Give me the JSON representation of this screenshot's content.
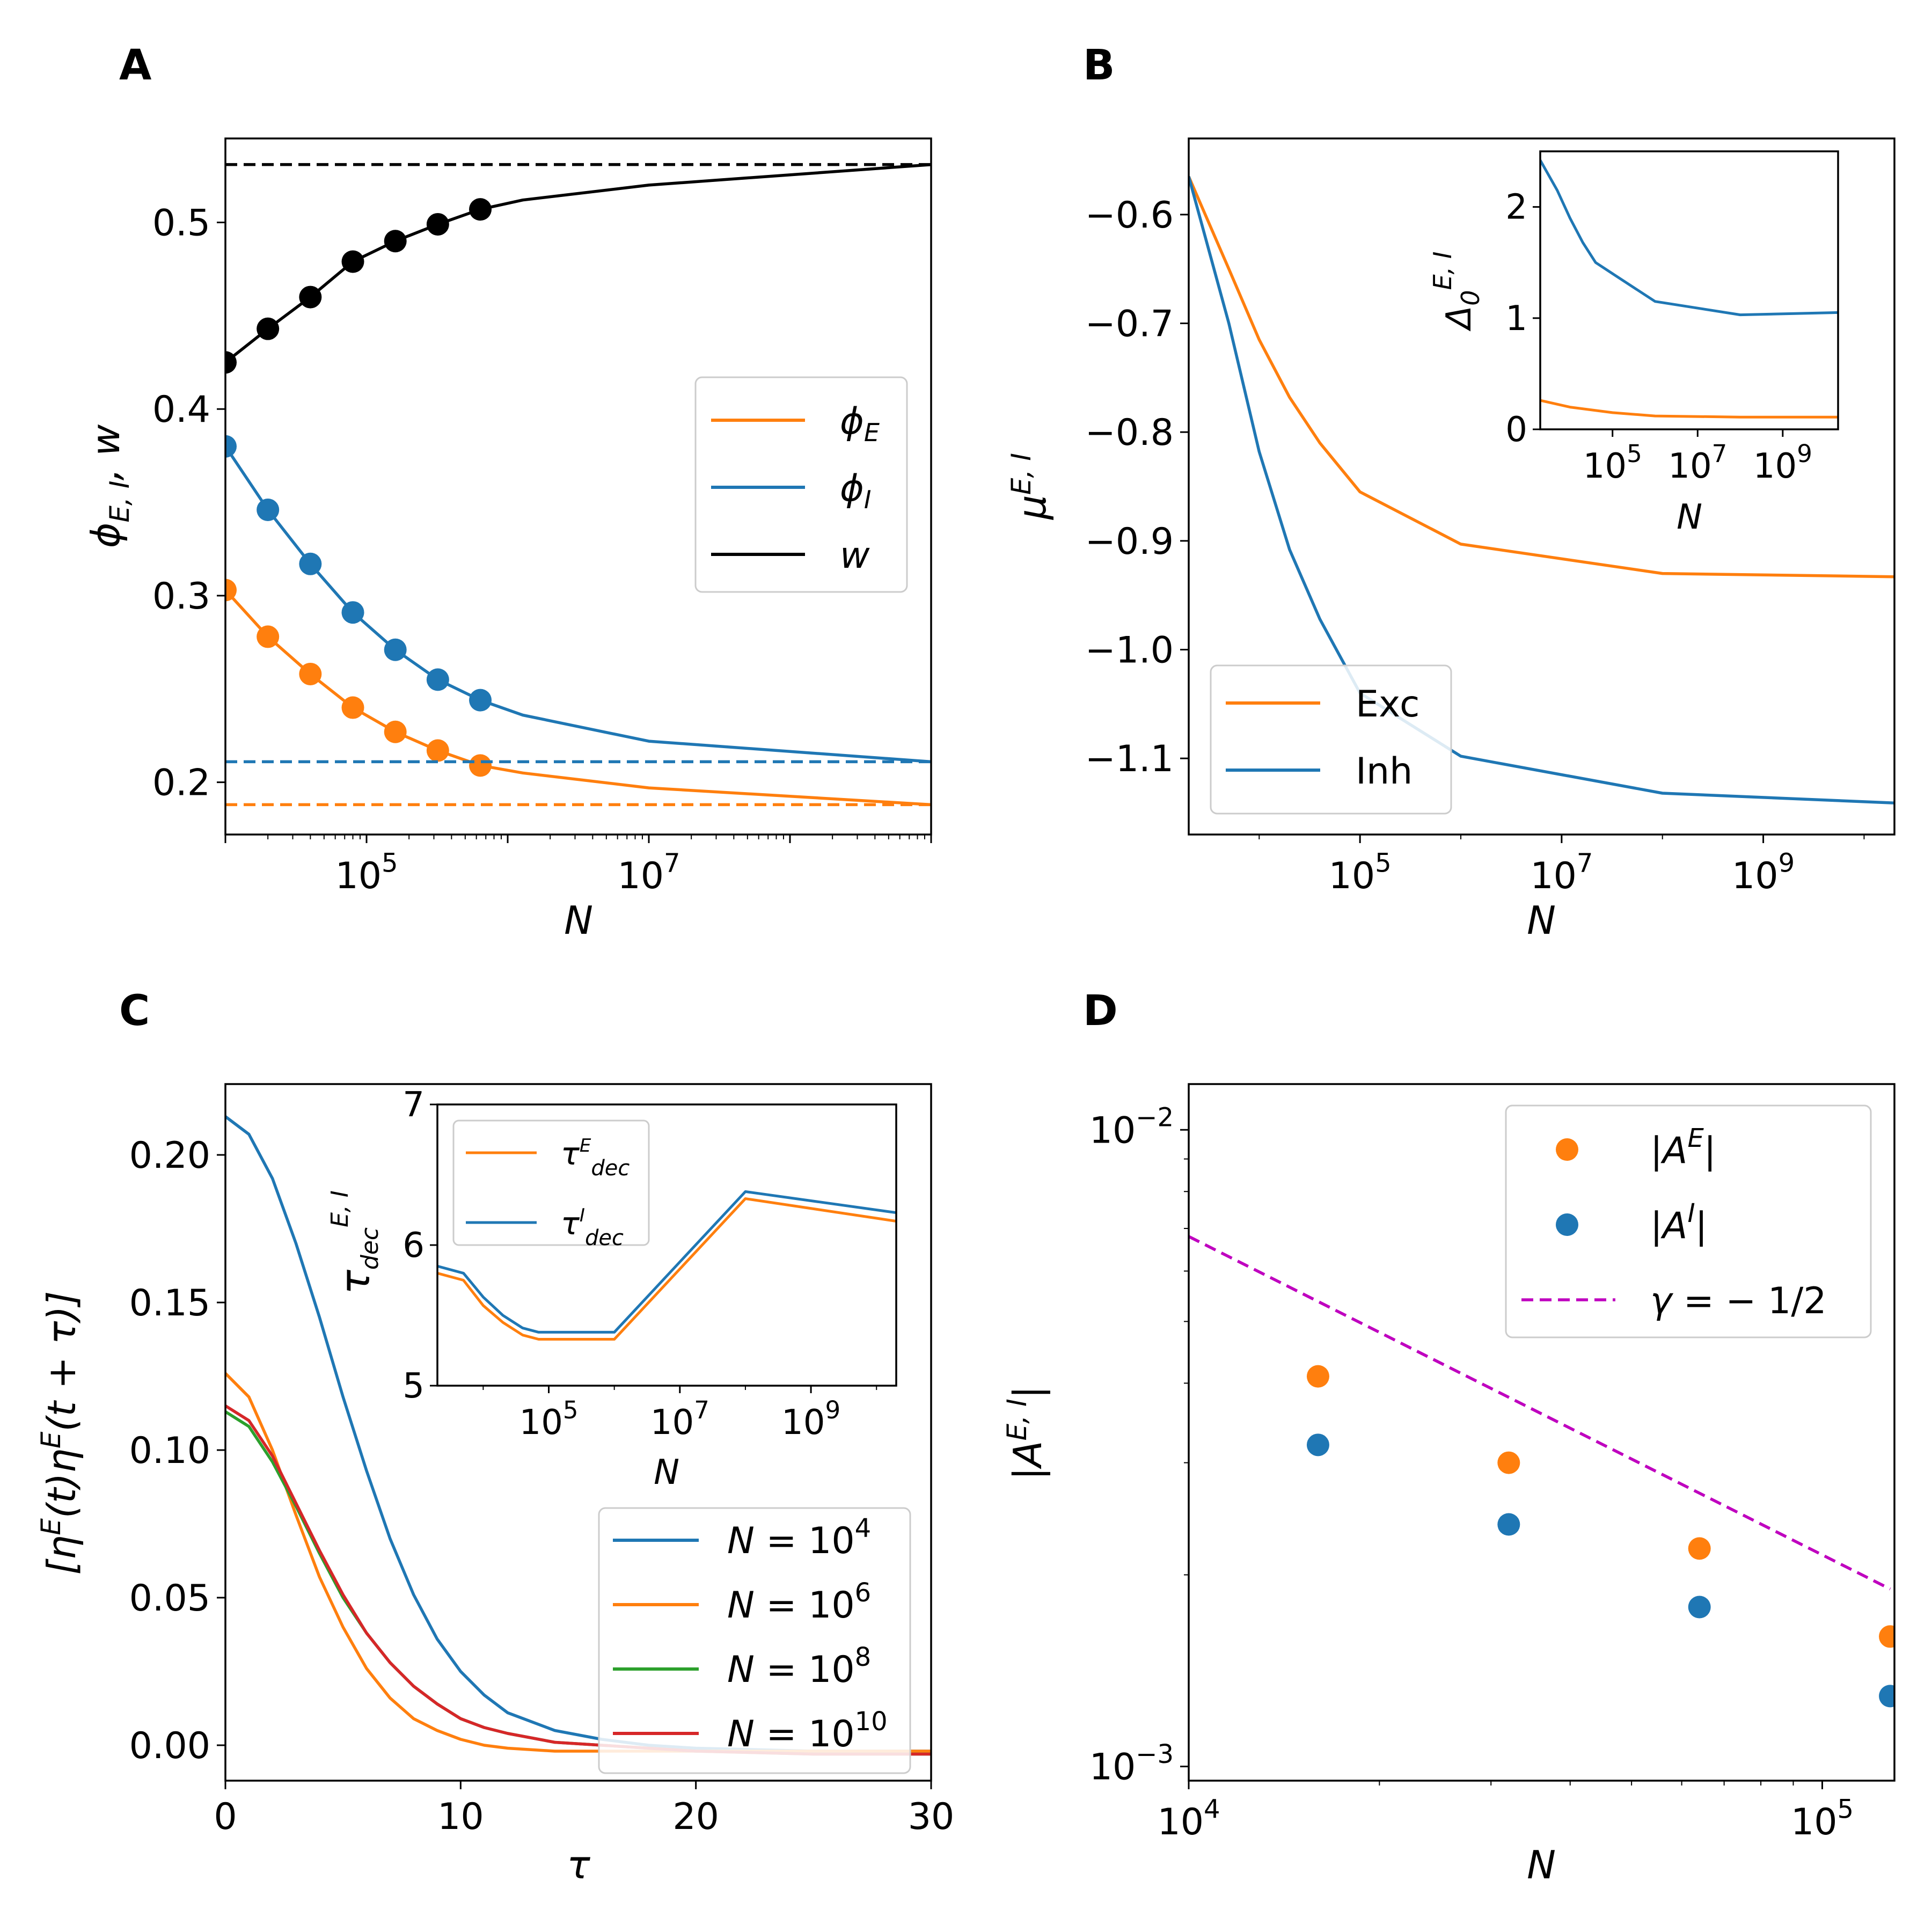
{
  "colors": {
    "exc": "#ff7f0e",
    "inh": "#1f77b4",
    "w": "#000000",
    "green": "#2ca02c",
    "red": "#d62728",
    "magenta": "#bf00bf"
  },
  "chart_data": [
    {
      "id": "A",
      "panel_label": "A",
      "type": "line",
      "xscale": "log",
      "xlim": [
        10000,
        1000000000
      ],
      "ylim": [
        0.172,
        0.545
      ],
      "xlabel": "N",
      "ylabel": "ϕ_{E, I}, w",
      "xticks": [
        {
          "value": 100000,
          "base": "10",
          "exp": "5"
        },
        {
          "value": 10000000,
          "base": "10",
          "exp": "7"
        }
      ],
      "yticks": [
        {
          "value": 0.2,
          "label": "0.2"
        },
        {
          "value": 0.3,
          "label": "0.3"
        },
        {
          "value": 0.4,
          "label": "0.4"
        },
        {
          "value": 0.5,
          "label": "0.5"
        }
      ],
      "legend_position": "center-right",
      "series": [
        {
          "name": "w",
          "legend_base": "w",
          "legend_sub": "",
          "color": "#000000",
          "x": [
            10000,
            20000,
            40000,
            80000,
            160000,
            320000,
            640000,
            1280000,
            10000000,
            1000000000
          ],
          "y": [
            0.425,
            0.443,
            0.46,
            0.479,
            0.49,
            0.499,
            0.507,
            0.512,
            0.52,
            0.531
          ],
          "marker_x": [
            10000,
            20000,
            40000,
            80000,
            160000,
            320000,
            640000
          ],
          "marker_y": [
            0.425,
            0.443,
            0.46,
            0.479,
            0.49,
            0.499,
            0.507
          ],
          "asymptote": 0.531
        },
        {
          "name": "ϕ_E",
          "legend_base": "ϕ",
          "legend_sub": "E",
          "color": "#ff7f0e",
          "x": [
            10000,
            20000,
            40000,
            80000,
            160000,
            320000,
            640000,
            1280000,
            10000000,
            1000000000
          ],
          "y": [
            0.303,
            0.278,
            0.258,
            0.24,
            0.227,
            0.217,
            0.209,
            0.205,
            0.197,
            0.188
          ],
          "marker_x": [
            10000,
            20000,
            40000,
            80000,
            160000,
            320000,
            640000
          ],
          "marker_y": [
            0.303,
            0.278,
            0.258,
            0.24,
            0.227,
            0.217,
            0.209
          ],
          "asymptote": 0.188
        },
        {
          "name": "ϕ_I",
          "legend_base": "ϕ",
          "legend_sub": "I",
          "color": "#1f77b4",
          "x": [
            10000,
            20000,
            40000,
            80000,
            160000,
            320000,
            640000,
            1280000,
            10000000,
            1000000000
          ],
          "y": [
            0.38,
            0.346,
            0.317,
            0.291,
            0.271,
            0.255,
            0.244,
            0.236,
            0.222,
            0.211
          ],
          "marker_x": [
            10000,
            20000,
            40000,
            80000,
            160000,
            320000,
            640000
          ],
          "marker_y": [
            0.38,
            0.346,
            0.317,
            0.291,
            0.271,
            0.255,
            0.244
          ],
          "asymptote": 0.211
        }
      ]
    },
    {
      "id": "B",
      "panel_label": "B",
      "type": "line",
      "xscale": "log",
      "xlim": [
        2000,
        20000000000
      ],
      "ylim": [
        -1.17,
        -0.53
      ],
      "xlabel": "N",
      "ylabel": "μ^{E, I}",
      "xticks": [
        {
          "value": 100000,
          "base": "10",
          "exp": "5"
        },
        {
          "value": 10000000,
          "base": "10",
          "exp": "7"
        },
        {
          "value": 1000000000,
          "base": "10",
          "exp": "9"
        }
      ],
      "yticks": [
        {
          "value": -0.6,
          "label": "−0.6"
        },
        {
          "value": -0.7,
          "label": "−0.7"
        },
        {
          "value": -0.8,
          "label": "−0.8"
        },
        {
          "value": -0.9,
          "label": "−0.9"
        },
        {
          "value": -1.0,
          "label": "−1.0"
        },
        {
          "value": -1.1,
          "label": "−1.1"
        }
      ],
      "legend_position": "lower-left",
      "series": [
        {
          "name": "Exc",
          "color": "#ff7f0e",
          "x": [
            2000,
            5000,
            10000,
            20000,
            40000,
            100000,
            1000000,
            100000000,
            20000000000
          ],
          "y": [
            -0.565,
            -0.65,
            -0.715,
            -0.768,
            -0.81,
            -0.855,
            -0.903,
            -0.93,
            -0.933
          ]
        },
        {
          "name": "Inh",
          "color": "#1f77b4",
          "x": [
            2000,
            5000,
            10000,
            20000,
            40000,
            100000,
            1000000,
            100000000,
            20000000000
          ],
          "y": [
            -0.565,
            -0.7,
            -0.818,
            -0.908,
            -0.972,
            -1.04,
            -1.098,
            -1.132,
            -1.141
          ]
        }
      ],
      "inset": {
        "type": "line",
        "xscale": "log",
        "xlim": [
          2000,
          20000000000
        ],
        "ylim": [
          0,
          2.5
        ],
        "xlabel": "N",
        "ylabel": "Δ_0^{E, I}",
        "xticks": [
          {
            "value": 100000,
            "base": "10",
            "exp": "5"
          },
          {
            "value": 10000000,
            "base": "10",
            "exp": "7"
          },
          {
            "value": 1000000000,
            "base": "10",
            "exp": "9"
          }
        ],
        "yticks": [
          {
            "value": 0,
            "label": "0"
          },
          {
            "value": 1,
            "label": "1"
          },
          {
            "value": 2,
            "label": "2"
          }
        ],
        "series": [
          {
            "name": "Exc",
            "color": "#ff7f0e",
            "x": [
              2000,
              10000,
              100000,
              1000000,
              100000000,
              20000000000
            ],
            "y": [
              0.26,
              0.2,
              0.15,
              0.12,
              0.11,
              0.11
            ]
          },
          {
            "name": "Inh",
            "color": "#1f77b4",
            "x": [
              2000,
              5000,
              10000,
              20000,
              40000,
              100000,
              1000000,
              100000000,
              20000000000
            ],
            "y": [
              2.42,
              2.15,
              1.9,
              1.68,
              1.5,
              1.4,
              1.15,
              1.03,
              1.05
            ]
          }
        ]
      }
    },
    {
      "id": "C",
      "panel_label": "C",
      "type": "line",
      "xscale": "linear",
      "xlim": [
        0,
        30
      ],
      "ylim": [
        -0.012,
        0.224
      ],
      "xlabel": "τ",
      "ylabel": "[η^E(t)η^E(t + τ)]",
      "xticks": [
        {
          "value": 0,
          "label": "0"
        },
        {
          "value": 10,
          "label": "10"
        },
        {
          "value": 20,
          "label": "20"
        },
        {
          "value": 30,
          "label": "30"
        }
      ],
      "yticks": [
        {
          "value": 0.0,
          "label": "0.00"
        },
        {
          "value": 0.05,
          "label": "0.05"
        },
        {
          "value": 0.1,
          "label": "0.10"
        },
        {
          "value": 0.15,
          "label": "0.15"
        },
        {
          "value": 0.2,
          "label": "0.20"
        }
      ],
      "legend_position": "lower-right",
      "series": [
        {
          "name": "N = 10^4",
          "exp": "4",
          "color": "#1f77b4",
          "x": [
            0,
            1,
            2,
            3,
            4,
            5,
            6,
            7,
            8,
            9,
            10,
            11,
            12,
            14,
            16,
            18,
            20,
            25,
            30
          ],
          "y": [
            0.213,
            0.207,
            0.192,
            0.17,
            0.145,
            0.118,
            0.093,
            0.07,
            0.051,
            0.036,
            0.025,
            0.017,
            0.011,
            0.005,
            0.002,
            0.0,
            -0.001,
            -0.002,
            -0.002
          ]
        },
        {
          "name": "N = 10^6",
          "exp": "6",
          "color": "#ff7f0e",
          "x": [
            0,
            1,
            2,
            3,
            4,
            5,
            6,
            7,
            8,
            9,
            10,
            11,
            12,
            14,
            16,
            18,
            20,
            25,
            30
          ],
          "y": [
            0.126,
            0.118,
            0.1,
            0.078,
            0.057,
            0.04,
            0.026,
            0.016,
            0.009,
            0.005,
            0.002,
            0.0,
            -0.001,
            -0.002,
            -0.002,
            -0.002,
            -0.002,
            -0.002,
            -0.002
          ]
        },
        {
          "name": "N = 10^8",
          "exp": "8",
          "color": "#2ca02c",
          "x": [
            0,
            1,
            2,
            3,
            4,
            5,
            6,
            7,
            8,
            9,
            10,
            11,
            12,
            14,
            16,
            18,
            20,
            25,
            30
          ],
          "y": [
            0.113,
            0.108,
            0.096,
            0.081,
            0.065,
            0.05,
            0.038,
            0.028,
            0.02,
            0.014,
            0.009,
            0.006,
            0.004,
            0.001,
            0.0,
            -0.001,
            -0.002,
            -0.003,
            -0.003
          ]
        },
        {
          "name": "N = 10^10",
          "exp": "10",
          "color": "#d62728",
          "x": [
            0,
            1,
            2,
            3,
            4,
            5,
            6,
            7,
            8,
            9,
            10,
            11,
            12,
            14,
            16,
            18,
            20,
            25,
            30
          ],
          "y": [
            0.115,
            0.11,
            0.098,
            0.082,
            0.066,
            0.051,
            0.038,
            0.028,
            0.02,
            0.014,
            0.009,
            0.006,
            0.004,
            0.001,
            0.0,
            -0.001,
            -0.002,
            -0.003,
            -0.003
          ]
        }
      ],
      "inset": {
        "type": "line",
        "xscale": "log",
        "xlim": [
          2000,
          20000000000
        ],
        "ylim": [
          5,
          7
        ],
        "xlabel": "N",
        "ylabel": "τ_{dec}^{E, I}",
        "xticks": [
          {
            "value": 100000,
            "base": "10",
            "exp": "5"
          },
          {
            "value": 10000000,
            "base": "10",
            "exp": "7"
          },
          {
            "value": 1000000000,
            "base": "10",
            "exp": "9"
          }
        ],
        "yticks": [
          {
            "value": 5,
            "label": "5"
          },
          {
            "value": 6,
            "label": "6"
          },
          {
            "value": 7,
            "label": "7"
          }
        ],
        "legend_position": "upper-left",
        "series": [
          {
            "name": "τ_dec^E",
            "sup": "E",
            "color": "#ff7f0e",
            "x": [
              2000,
              5000,
              10000,
              20000,
              40000,
              70000,
              1000000,
              100000000,
              20000000000
            ],
            "y": [
              5.8,
              5.75,
              5.57,
              5.45,
              5.36,
              5.33,
              5.33,
              6.33,
              6.17
            ]
          },
          {
            "name": "τ_dec^I",
            "sup": "I",
            "color": "#1f77b4",
            "x": [
              2000,
              5000,
              10000,
              20000,
              40000,
              70000,
              1000000,
              100000000,
              20000000000
            ],
            "y": [
              5.85,
              5.8,
              5.63,
              5.5,
              5.41,
              5.38,
              5.38,
              6.38,
              6.23
            ]
          }
        ]
      }
    },
    {
      "id": "D",
      "panel_label": "D",
      "type": "scatter",
      "xscale": "log",
      "yscale": "log",
      "xlim": [
        10000,
        130000
      ],
      "ylim": [
        0.00095,
        0.0118
      ],
      "xlabel": "N",
      "ylabel": "|A^{E, I}|",
      "xticks": [
        {
          "value": 10000,
          "base": "10",
          "exp": "4"
        },
        {
          "value": 100000,
          "base": "10",
          "exp": "5"
        }
      ],
      "yticks": [
        {
          "value": 0.001,
          "base": "10",
          "exp": "−3"
        },
        {
          "value": 0.01,
          "base": "10",
          "exp": "−2"
        }
      ],
      "legend_position": "upper-right",
      "series": [
        {
          "name": "|A^E|",
          "sup": "E",
          "color": "#ff7f0e",
          "x": [
            16000,
            32000,
            64000,
            128000
          ],
          "y": [
            0.0041,
            0.003,
            0.0022,
            0.0016
          ]
        },
        {
          "name": "|A^I|",
          "sup": "I",
          "color": "#1f77b4",
          "x": [
            16000,
            32000,
            64000,
            128000
          ],
          "y": [
            0.0032,
            0.0024,
            0.00178,
            0.00129
          ]
        }
      ],
      "reference_line": {
        "name": "γ = −1/2",
        "color": "#bf00bf",
        "slope": -0.5,
        "x": [
          10000,
          128000
        ],
        "y": [
          0.0068,
          0.0019
        ]
      }
    }
  ]
}
